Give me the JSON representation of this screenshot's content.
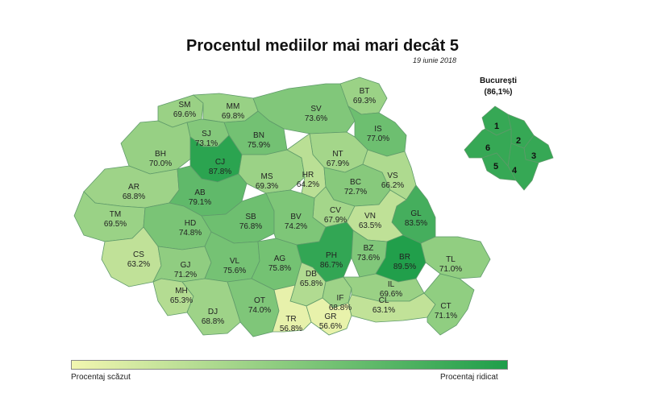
{
  "title": "Procentul mediilor mai mari decât 5",
  "date": "19 iunie 2018",
  "colors": {
    "low": "#f2f6b0",
    "high": "#1e9e4a"
  },
  "counties": [
    {
      "code": "SM",
      "value": "69.6%",
      "pct": 69.6
    },
    {
      "code": "MM",
      "value": "69.8%",
      "pct": 69.8
    },
    {
      "code": "BT",
      "value": "69.3%",
      "pct": 69.3
    },
    {
      "code": "SV",
      "value": "73.6%",
      "pct": 73.6
    },
    {
      "code": "SJ",
      "value": "73.1%",
      "pct": 73.1
    },
    {
      "code": "BN",
      "value": "75.9%",
      "pct": 75.9
    },
    {
      "code": "IS",
      "value": "77.0%",
      "pct": 77.0
    },
    {
      "code": "BH",
      "value": "70.0%",
      "pct": 70.0
    },
    {
      "code": "CJ",
      "value": "87.8%",
      "pct": 87.8
    },
    {
      "code": "NT",
      "value": "67.9%",
      "pct": 67.9
    },
    {
      "code": "MS",
      "value": "69.3%",
      "pct": 69.3
    },
    {
      "code": "HR",
      "value": "64.2%",
      "pct": 64.2
    },
    {
      "code": "BC",
      "value": "72.7%",
      "pct": 72.7
    },
    {
      "code": "VS",
      "value": "66.2%",
      "pct": 66.2
    },
    {
      "code": "AR",
      "value": "68.8%",
      "pct": 68.8
    },
    {
      "code": "AB",
      "value": "79.1%",
      "pct": 79.1
    },
    {
      "code": "CV",
      "value": "67.9%",
      "pct": 67.9
    },
    {
      "code": "GL",
      "value": "83.5%",
      "pct": 83.5
    },
    {
      "code": "TM",
      "value": "69.5%",
      "pct": 69.5
    },
    {
      "code": "HD",
      "value": "74.8%",
      "pct": 74.8
    },
    {
      "code": "SB",
      "value": "76.8%",
      "pct": 76.8
    },
    {
      "code": "BV",
      "value": "74.2%",
      "pct": 74.2
    },
    {
      "code": "VN",
      "value": "63.5%",
      "pct": 63.5
    },
    {
      "code": "CS",
      "value": "63.2%",
      "pct": 63.2
    },
    {
      "code": "GJ",
      "value": "71.2%",
      "pct": 71.2
    },
    {
      "code": "VL",
      "value": "75.6%",
      "pct": 75.6
    },
    {
      "code": "AG",
      "value": "75.8%",
      "pct": 75.8
    },
    {
      "code": "PH",
      "value": "86.7%",
      "pct": 86.7
    },
    {
      "code": "BZ",
      "value": "73.6%",
      "pct": 73.6
    },
    {
      "code": "BR",
      "value": "89.5%",
      "pct": 89.5
    },
    {
      "code": "TL",
      "value": "71.0%",
      "pct": 71.0
    },
    {
      "code": "DB",
      "value": "65.8%",
      "pct": 65.8
    },
    {
      "code": "MH",
      "value": "65.3%",
      "pct": 65.3
    },
    {
      "code": "IF",
      "value": "68.8%",
      "pct": 68.8
    },
    {
      "code": "IL",
      "value": "69.6%",
      "pct": 69.6
    },
    {
      "code": "OT",
      "value": "74.0%",
      "pct": 74.0
    },
    {
      "code": "DJ",
      "value": "68.8%",
      "pct": 68.8
    },
    {
      "code": "TR",
      "value": "56.8%",
      "pct": 56.8
    },
    {
      "code": "GR",
      "value": "56.6%",
      "pct": 56.6
    },
    {
      "code": "CL",
      "value": "63.1%",
      "pct": 63.1
    },
    {
      "code": "CT",
      "value": "71.1%",
      "pct": 71.1
    }
  ],
  "bucuresti": {
    "title": "București",
    "value": "(86,1%)",
    "pct": 86.1,
    "sectors": [
      "1",
      "2",
      "3",
      "4",
      "5",
      "6"
    ]
  },
  "legend": {
    "low_label": "Procentaj scăzut",
    "high_label": "Procentaj ridicat"
  }
}
